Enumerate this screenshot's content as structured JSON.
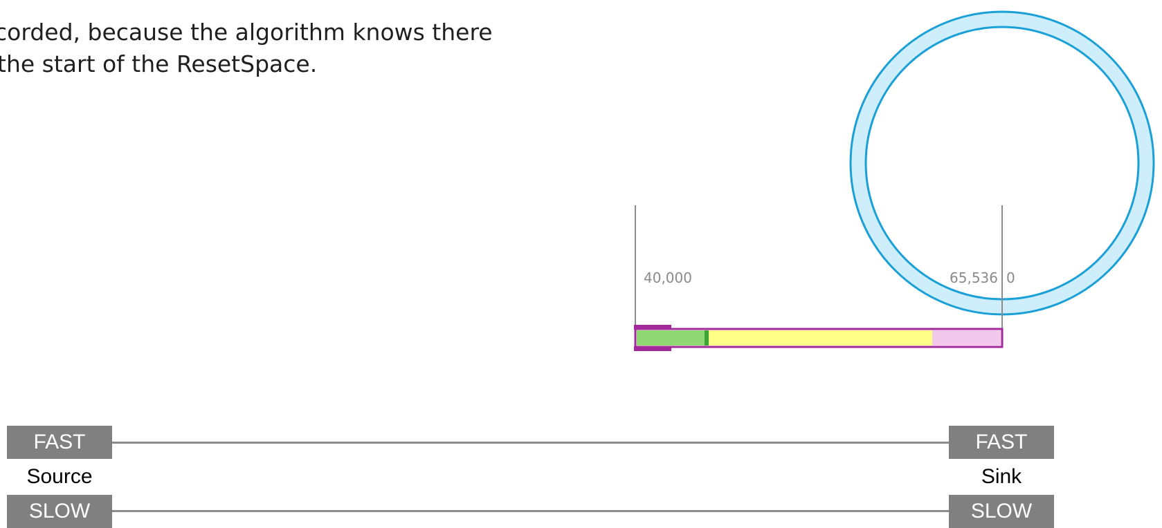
{
  "intro": {
    "line1": "corded, because the algorithm knows there",
    "line2": "the start of the ResetSpace."
  },
  "buffer": {
    "ticks": {
      "left": "40,000",
      "wrap_max": "65,536",
      "wrap_zero": "0"
    },
    "colors": {
      "ring": "#1a9fd6",
      "ring_fill": "#cdeefa",
      "bar_border": "#a3289a",
      "green": "#8fd873",
      "green_marker": "#3aa534",
      "yellow": "#ffff88",
      "pink": "#f2c8ec"
    }
  },
  "channels": {
    "source_label": "Source",
    "sink_label": "Sink",
    "fast_left": "FAST",
    "fast_right": "FAST",
    "slow_left": "SLOW",
    "slow_right": "SLOW"
  }
}
